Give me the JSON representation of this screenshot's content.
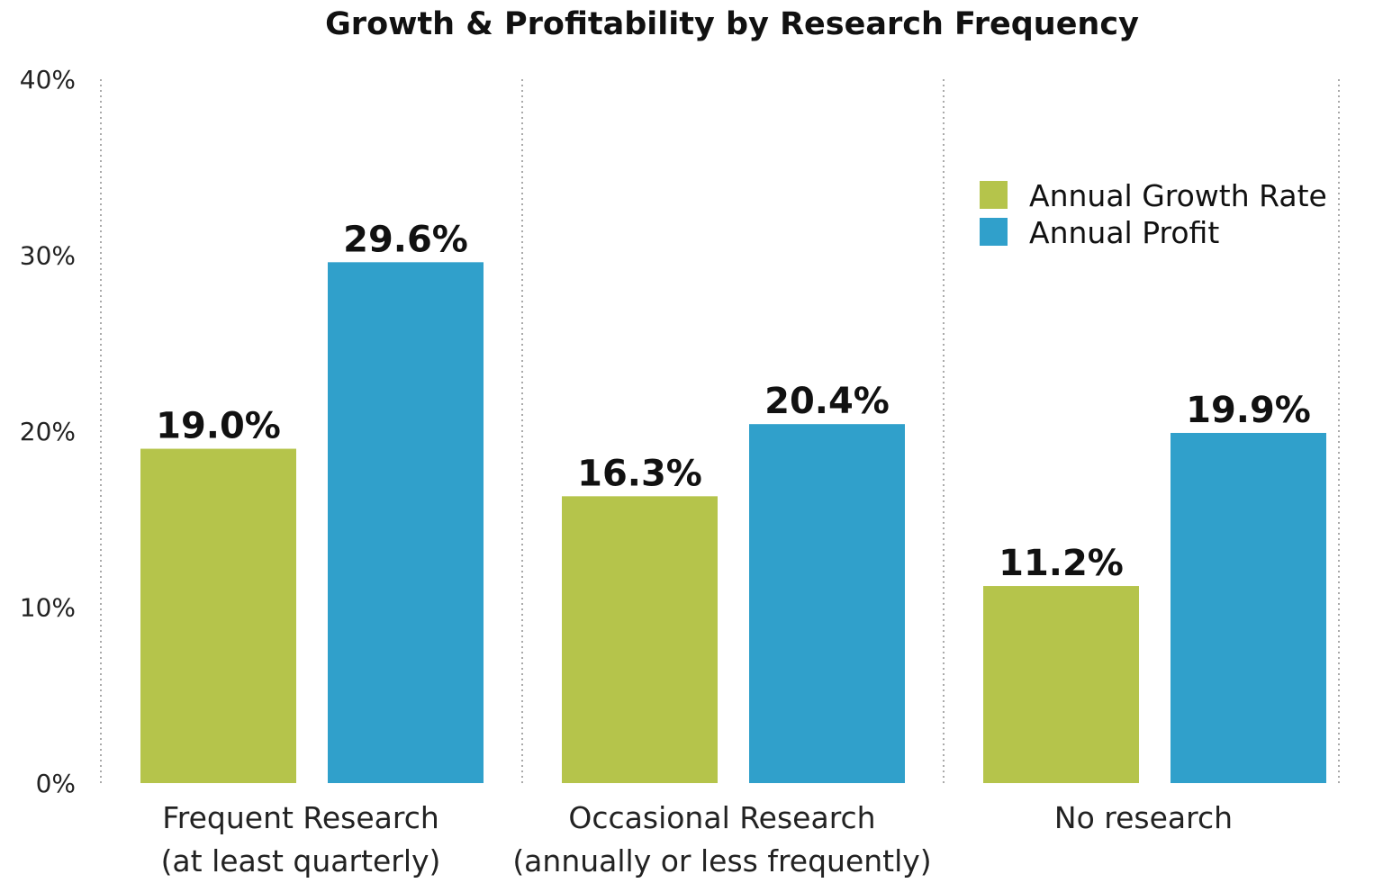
{
  "chart_data": {
    "type": "bar",
    "title": "Growth & Profitability by Research Frequency",
    "xlabel": "",
    "ylabel": "",
    "ylim": [
      0,
      40
    ],
    "yticks": [
      "0%",
      "10%",
      "20%",
      "30%",
      "40%"
    ],
    "ytick_values": [
      0,
      10,
      20,
      30,
      40
    ],
    "grid": false,
    "legend_position": "top-right",
    "categories": [
      [
        "Frequent Research",
        "(at least quarterly)"
      ],
      [
        "Occasional Research",
        "(annually or less frequently)"
      ],
      [
        "No research"
      ]
    ],
    "series": [
      {
        "name": "Annual Growth Rate",
        "color": "#b5c44b",
        "values": [
          19.0,
          16.3,
          11.2
        ],
        "labels": [
          "19.0%",
          "16.3%",
          "11.2%"
        ]
      },
      {
        "name": "Annual Profit",
        "color": "#30a0cb",
        "values": [
          29.6,
          20.4,
          19.9
        ],
        "labels": [
          "29.6%",
          "20.4%",
          "19.9%"
        ]
      }
    ]
  }
}
